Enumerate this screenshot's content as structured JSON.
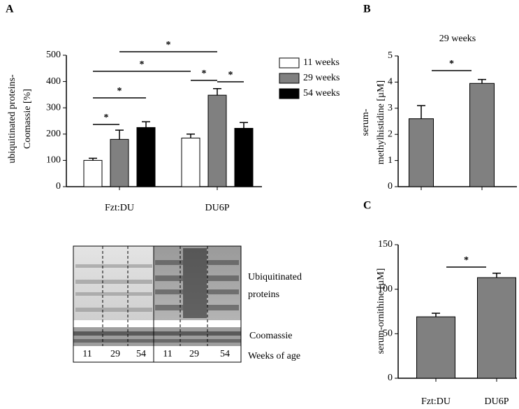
{
  "chart_data": [
    {
      "type": "bar",
      "panel": "A",
      "ylabel": [
        "ubiquitinated proteins-",
        "Coomassie  [%]"
      ],
      "categories": [
        "Fzt:DU",
        "DU6P"
      ],
      "series": [
        {
          "name": "11 weeks",
          "color": "#ffffff",
          "values": [
            100,
            185
          ],
          "errors": [
            8,
            15
          ]
        },
        {
          "name": "29 weeks",
          "color": "#808080",
          "values": [
            180,
            348
          ],
          "errors": [
            35,
            25
          ]
        },
        {
          "name": "54 weeks",
          "color": "#000000",
          "values": [
            225,
            222
          ],
          "errors": [
            22,
            22
          ]
        }
      ],
      "ylim": [
        0,
        500
      ],
      "yticks": [
        0,
        100,
        200,
        300,
        400,
        500
      ],
      "legend": "upper right",
      "significance": [
        {
          "between": [
            [
              0,
              0
            ],
            [
              0,
              1
            ]
          ],
          "label": "*"
        },
        {
          "between": [
            [
              0,
              0
            ],
            [
              0,
              2
            ]
          ],
          "label": "*"
        },
        {
          "between": [
            [
              0,
              0
            ],
            [
              1,
              0
            ]
          ],
          "label": "*"
        },
        {
          "between": [
            [
              0,
              1
            ],
            [
              1,
              1
            ]
          ],
          "label": "*"
        },
        {
          "between": [
            [
              1,
              0
            ],
            [
              1,
              1
            ]
          ],
          "label": "*"
        },
        {
          "between": [
            [
              1,
              1
            ],
            [
              1,
              2
            ]
          ],
          "label": "*"
        }
      ]
    },
    {
      "type": "bar",
      "panel": "B",
      "subtitle": "29 weeks",
      "ylabel": [
        "serum-",
        "methylhistidine [µM]"
      ],
      "categories": [
        null,
        null
      ],
      "series": [
        {
          "color": "#808080",
          "values": [
            2.6,
            3.95
          ],
          "errors": [
            0.5,
            0.15
          ]
        }
      ],
      "ylim": [
        0,
        5
      ],
      "yticks": [
        0,
        1,
        2,
        3,
        4,
        5
      ],
      "significance": [
        {
          "between": [
            [
              0,
              0
            ],
            [
              1,
              0
            ]
          ],
          "label": "*"
        }
      ]
    },
    {
      "type": "bar",
      "panel": "C",
      "ylabel": [
        "serum-ornithine [µM]"
      ],
      "categories": [
        "Fzt:DU",
        "DU6P"
      ],
      "series": [
        {
          "color": "#808080",
          "values": [
            69,
            113
          ],
          "errors": [
            4,
            5
          ]
        }
      ],
      "ylim": [
        0,
        150
      ],
      "yticks": [
        0,
        50,
        100,
        150
      ],
      "significance": [
        {
          "between": [
            [
              0,
              0
            ],
            [
              1,
              0
            ]
          ],
          "label": "*"
        }
      ]
    }
  ],
  "blot": {
    "ubiquitinated": [
      "Ubiquitinated",
      "proteins"
    ],
    "loading": "Coomassie",
    "age": "Weeks of age",
    "lanes": [
      "11",
      "29",
      "54",
      "11",
      "29",
      "54"
    ]
  }
}
